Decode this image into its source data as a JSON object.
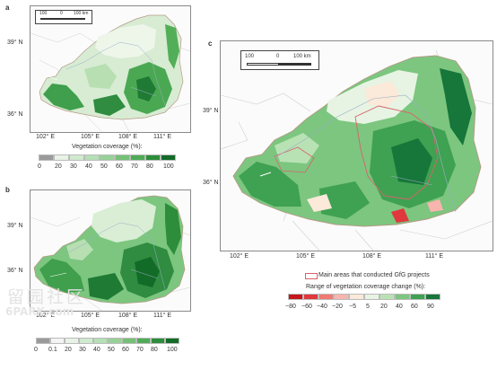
{
  "panels": {
    "a": {
      "label": "a",
      "scale": {
        "l0": "100",
        "l1": "0",
        "l2": "100 km"
      },
      "lat_ticks": [
        "39° N",
        "36° N"
      ],
      "lon_ticks": [
        "102° E",
        "105° E",
        "108° E",
        "111° E"
      ],
      "legend_title": "Vegetation coverage (%):",
      "legend_ticks": [
        "0",
        "20",
        "30",
        "40",
        "50",
        "60",
        "70",
        "80",
        "100"
      ],
      "legend_colors": [
        "#9a9a9a",
        "#e8f3e6",
        "#d0ead0",
        "#b5dfb5",
        "#97d197",
        "#74c076",
        "#4fac56",
        "#2d8d3a",
        "#136b28"
      ]
    },
    "b": {
      "label": "b",
      "lat_ticks": [
        "39° N",
        "36° N"
      ],
      "lon_ticks": [
        "102° E",
        "105° E",
        "108° E",
        "111° E"
      ],
      "legend_title": "Vegetation coverage (%):",
      "legend_ticks": [
        "0",
        "0.1",
        "20",
        "30",
        "40",
        "50",
        "60",
        "70",
        "80",
        "100"
      ],
      "legend_colors": [
        "#9a9a9a",
        "#f4f4f4",
        "#e8f3e6",
        "#d0ead0",
        "#b5dfb5",
        "#97d197",
        "#74c076",
        "#4fac56",
        "#2d8d3a",
        "#136b28"
      ]
    },
    "c": {
      "label": "c",
      "scale": {
        "l0": "100",
        "l1": "0",
        "l2": "100 km"
      },
      "lat_ticks": [
        "39° N",
        "36° N"
      ],
      "lon_ticks": [
        "102° E",
        "105° E",
        "108° E",
        "111° E"
      ],
      "gfg_legend": "Main areas that conducted GfG projects",
      "legend_title": "Range of vegetation coverage change (%):",
      "legend_ticks": [
        "−80",
        "−60",
        "−40",
        "−20",
        "−5",
        "5",
        "20",
        "40",
        "60",
        "90"
      ],
      "legend_colors": [
        "#c4161c",
        "#e0383c",
        "#f07a74",
        "#f8b4ae",
        "#fbe9d9",
        "#e7f4e3",
        "#b9e2b4",
        "#7cc67f",
        "#3fa152",
        "#17763a"
      ]
    }
  },
  "watermark": {
    "text": "留园社区",
    "site": "6PARK.com"
  },
  "colors": {
    "frame": "#8a8a8a",
    "gfg_outline": "#d9636b",
    "outline": "#b59a86"
  }
}
